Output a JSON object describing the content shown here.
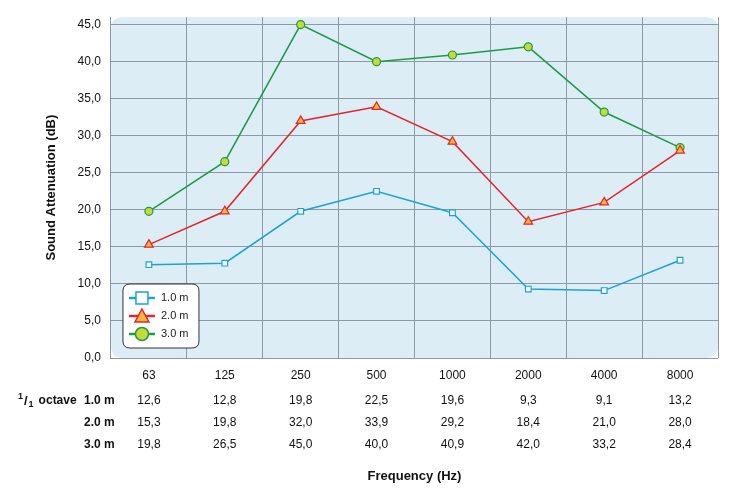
{
  "chart_data": {
    "type": "line",
    "x_label": "Frequency (Hz)",
    "y_label": "Sound Attenuation (dB)",
    "table_label": "1/1 octave",
    "categories": [
      "63",
      "125",
      "250",
      "500",
      "1000",
      "2000",
      "4000",
      "8000"
    ],
    "series": [
      {
        "name": "1.0 m",
        "color": "#1ba3d6",
        "marker": "square",
        "line_style": "solid",
        "values": [
          12.6,
          12.8,
          19.8,
          22.5,
          19.6,
          9.3,
          9.1,
          13.2
        ],
        "value_labels": [
          "12,6",
          "12,8",
          "19,8",
          "22,5",
          "19,6",
          "9,3",
          "9,1",
          "13,2"
        ]
      },
      {
        "name": "2.0 m",
        "color": "#e3262b",
        "marker": "triangle",
        "line_style": "solid",
        "values": [
          15.3,
          19.8,
          32.0,
          33.9,
          29.2,
          18.4,
          21.0,
          28.0
        ],
        "value_labels": [
          "15,3",
          "19,8",
          "32,0",
          "33,9",
          "29,2",
          "18,4",
          "21,0",
          "28,0"
        ]
      },
      {
        "name": "3.0 m",
        "color": "#1d9a48",
        "marker": "circle",
        "line_style": "solid",
        "values": [
          19.8,
          26.5,
          45.0,
          40.0,
          40.9,
          42.0,
          33.2,
          28.4
        ],
        "value_labels": [
          "19,8",
          "26,5",
          "45,0",
          "40,0",
          "40,9",
          "42,0",
          "33,2",
          "28,4"
        ]
      }
    ],
    "ylim": [
      0,
      46
    ],
    "yticks": [
      {
        "value": 0,
        "label": "0,0"
      },
      {
        "value": 5,
        "label": "5,0"
      },
      {
        "value": 10,
        "label": "10,0"
      },
      {
        "value": 15,
        "label": "15,0"
      },
      {
        "value": 20,
        "label": "20,0"
      },
      {
        "value": 25,
        "label": "25,0"
      },
      {
        "value": 30,
        "label": "30,0"
      },
      {
        "value": 35,
        "label": "35,0"
      },
      {
        "value": 40,
        "label": "40,0"
      },
      {
        "value": 45,
        "label": "45,0"
      }
    ],
    "grid": true,
    "legend": "lower left"
  }
}
